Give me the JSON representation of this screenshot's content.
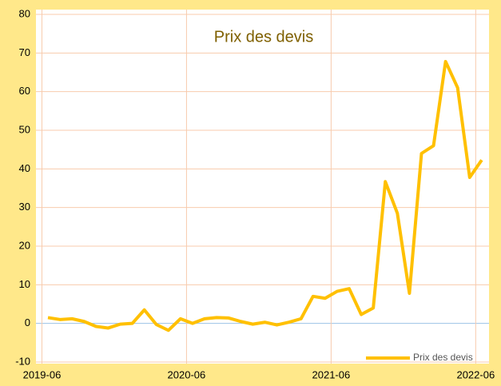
{
  "chart_data": {
    "type": "line",
    "title": "Prix des devis",
    "categories": [
      "2019-06",
      null,
      null,
      null,
      null,
      null,
      null,
      null,
      null,
      null,
      null,
      null,
      "2020-06",
      null,
      null,
      null,
      null,
      null,
      null,
      null,
      null,
      null,
      null,
      null,
      "2021-06",
      null,
      null,
      null,
      null,
      null,
      null,
      null,
      null,
      null,
      null,
      null,
      "2022-06"
    ],
    "series": [
      {
        "name": "Prix des devis",
        "color": "#ffc000",
        "values": [
          1.5,
          1,
          1.2,
          0.5,
          -0.8,
          -1.2,
          -0.2,
          0,
          3.5,
          -0.3,
          -1.8,
          1.2,
          0,
          1.2,
          1.5,
          1.4,
          0.5,
          -0.2,
          0.3,
          -0.4,
          0.3,
          1.2,
          7,
          6.5,
          8.3,
          9,
          2.3,
          4,
          36.7,
          28.5,
          7.8,
          44,
          46,
          67.8,
          61,
          37.8,
          42.3
        ]
      }
    ],
    "ylim": [
      -10,
      80
    ],
    "yticks": [
      -10,
      0,
      10,
      20,
      30,
      40,
      50,
      60,
      70,
      80
    ],
    "grid": true,
    "legend": "bottom-right"
  }
}
